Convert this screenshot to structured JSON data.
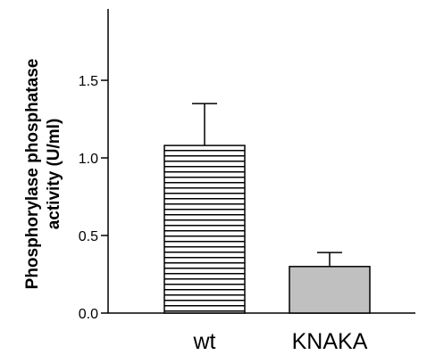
{
  "chart_data": {
    "type": "bar",
    "title": "",
    "xlabel": "",
    "ylabel": [
      "Phosphorylase phosphatase",
      "activity (U/ml)"
    ],
    "categories": [
      "wt",
      "KNAKA"
    ],
    "values": [
      1.08,
      0.3
    ],
    "errors": [
      0.27,
      0.09
    ],
    "ylim": [
      0,
      1.96
    ],
    "yticks": [
      0.0,
      0.5,
      1.0,
      1.5
    ],
    "ytick_labels": [
      "0.0",
      "0.5",
      "1.0",
      "1.5"
    ],
    "bar_fills": [
      "horizontal-stripes",
      "solid"
    ],
    "colors": {
      "bar_solid": "#c0c0c0",
      "stripe": "#000000",
      "axis": "#000000"
    },
    "grid": false,
    "legend": "none"
  }
}
